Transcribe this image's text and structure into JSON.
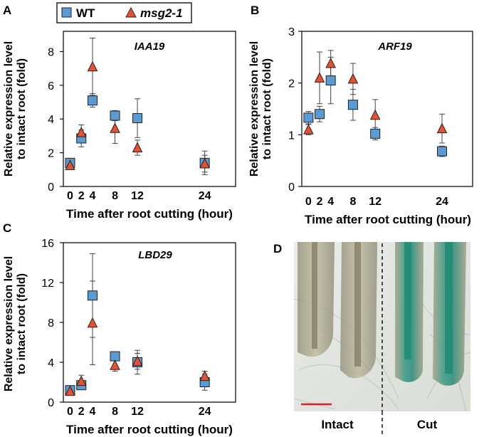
{
  "legend": {
    "series": [
      {
        "name": "WT",
        "marker": "square"
      },
      {
        "name": "msg2-1",
        "marker": "triangle"
      }
    ]
  },
  "colors": {
    "wt_fill": "#5b9bd5",
    "mut_fill": "#e8502f",
    "marker_stroke": "#222222",
    "bar": "#444444",
    "scale_bar": "#e02020"
  },
  "shared": {
    "xlabel": "Time after root cutting (hour)",
    "ylabel_line1": "Relative expression level",
    "ylabel_line2": "to intact root (fold)"
  },
  "panels": {
    "A": {
      "letter": "A"
    },
    "B": {
      "letter": "B"
    },
    "C": {
      "letter": "C"
    },
    "D": {
      "letter": "D",
      "label_left": "Intact",
      "label_right": "Cut"
    }
  },
  "chart_data": [
    {
      "id": "A",
      "type": "scatter",
      "title": "IAA19",
      "x": [
        0,
        2,
        4,
        8,
        12,
        24
      ],
      "xticks": [
        0,
        2,
        4,
        8,
        12,
        24
      ],
      "yticks": [
        0,
        2,
        4,
        6,
        8
      ],
      "ylim": [
        0,
        9.2
      ],
      "series": [
        {
          "name": "WT",
          "values": [
            1.4,
            2.85,
            5.1,
            4.2,
            4.05,
            1.4
          ],
          "err": [
            0.25,
            0.5,
            0.4,
            0.3,
            1.15,
            0.7
          ]
        },
        {
          "name": "msg2-1",
          "values": [
            1.25,
            3.2,
            7.1,
            3.45,
            2.3,
            1.35
          ],
          "err": [
            0.2,
            0.45,
            1.7,
            0.9,
            0.45,
            0.5
          ]
        }
      ]
    },
    {
      "id": "B",
      "type": "scatter",
      "title": "ARF19",
      "x": [
        0,
        2,
        4,
        8,
        12,
        24
      ],
      "xticks": [
        0,
        2,
        4,
        8,
        12,
        24
      ],
      "yticks": [
        0,
        1,
        2,
        3
      ],
      "ylim": [
        0,
        3
      ],
      "series": [
        {
          "name": "WT",
          "values": [
            1.33,
            1.4,
            2.05,
            1.58,
            1.02,
            0.68
          ],
          "err": [
            0.12,
            0.15,
            0.45,
            0.3,
            0.12,
            0.1
          ]
        },
        {
          "name": "msg2-1",
          "values": [
            1.1,
            2.1,
            2.38,
            2.08,
            1.38,
            1.12
          ],
          "err": [
            0.1,
            0.5,
            0.25,
            0.3,
            0.3,
            0.28
          ]
        }
      ]
    },
    {
      "id": "C",
      "type": "scatter",
      "title": "LBD29",
      "x": [
        0,
        2,
        4,
        8,
        12,
        24
      ],
      "xticks": [
        0,
        2,
        4,
        8,
        12,
        24
      ],
      "yticks": [
        0,
        4,
        8,
        12,
        16
      ],
      "ylim": [
        0,
        16
      ],
      "series": [
        {
          "name": "WT",
          "values": [
            1.2,
            1.7,
            10.7,
            4.6,
            4.0,
            2.0
          ],
          "err": [
            0.3,
            0.4,
            4.2,
            0.4,
            1.2,
            0.8
          ]
        },
        {
          "name": "msg2-1",
          "values": [
            1.1,
            2.1,
            7.95,
            3.7,
            4.1,
            2.6
          ],
          "err": [
            0.3,
            0.6,
            4.2,
            0.6,
            0.8,
            0.5
          ]
        }
      ]
    }
  ]
}
